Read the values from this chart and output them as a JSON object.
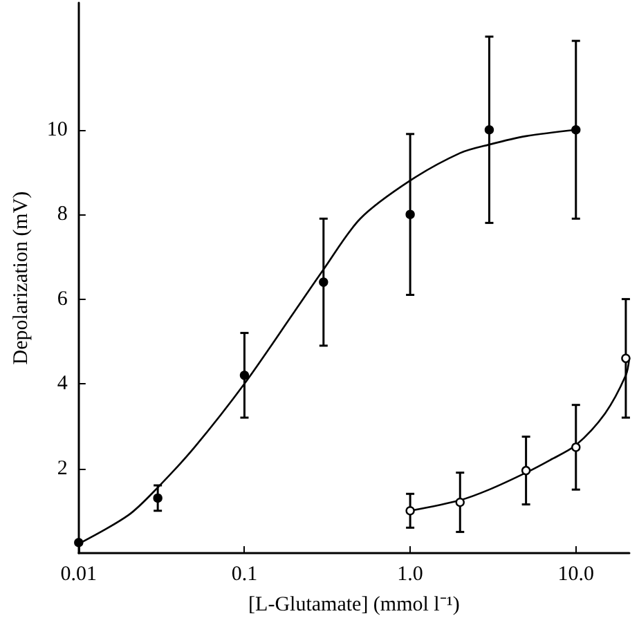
{
  "chart_data": {
    "type": "scatter",
    "xlabel": "[L-Glutamate] (mmol l⁻¹)",
    "ylabel": "Depolarization (mV)",
    "log": "x",
    "xlim": [
      0.01,
      21
    ],
    "xticks": [
      {
        "value": 0.01,
        "label": "0.01"
      },
      {
        "value": 0.1,
        "label": "0.1"
      },
      {
        "value": 1,
        "label": "1.0"
      },
      {
        "value": 10,
        "label": "10.0"
      }
    ],
    "ylim": [
      0,
      13
    ],
    "yticks": [
      2,
      4,
      6,
      8,
      10
    ],
    "grid": false,
    "marker": "circle",
    "series": [
      {
        "type": "line",
        "marker": "none",
        "color": "#000000",
        "x": [
          0.01,
          0.02,
          0.03,
          0.05,
          0.1,
          0.2,
          0.3,
          0.5,
          1,
          2,
          3,
          5,
          10
        ],
        "values": [
          0.22,
          0.9,
          1.55,
          2.5,
          4.0,
          5.7,
          6.7,
          7.9,
          8.8,
          9.45,
          9.65,
          9.85,
          10.0
        ]
      },
      {
        "type": "line",
        "marker": "none",
        "color": "#000000",
        "x": [
          1,
          2,
          3,
          5,
          7,
          10,
          15,
          20,
          21
        ],
        "values": [
          1.0,
          1.25,
          1.5,
          1.9,
          2.2,
          2.55,
          3.3,
          4.2,
          4.6
        ]
      },
      {
        "type": "scatter",
        "color": "#000000",
        "x": [
          0.01,
          0.03,
          0.1,
          0.3,
          1,
          3,
          10
        ],
        "values": [
          0.25,
          1.3,
          4.2,
          6.4,
          8.0,
          10.0,
          10.0
        ],
        "errors": [
          null,
          0.3,
          1.0,
          1.5,
          1.9,
          2.2,
          2.1
        ]
      },
      {
        "type": "scatter",
        "color": "#ffffff",
        "x": [
          1,
          2,
          5,
          10,
          20
        ],
        "values": [
          1.0,
          1.2,
          1.95,
          2.5,
          4.6
        ],
        "errors": [
          0.4,
          0.7,
          0.8,
          1.0,
          1.4
        ]
      }
    ]
  }
}
